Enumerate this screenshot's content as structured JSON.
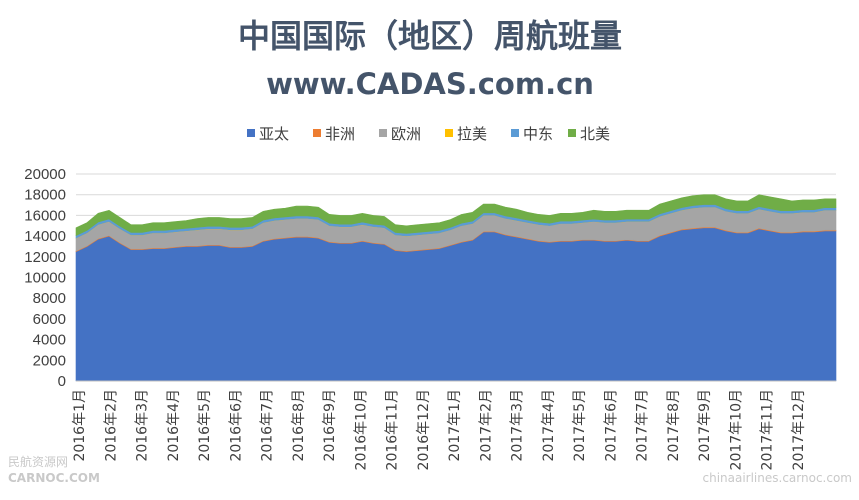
{
  "chart_data": {
    "type": "area",
    "stacked": true,
    "title": "中国国际（地区）周航班量",
    "subtitle": "www.CADAS.com.cn",
    "xlabel": "",
    "ylabel": "",
    "ylim": [
      0,
      20000
    ],
    "yticks": [
      0,
      2000,
      4000,
      6000,
      8000,
      10000,
      12000,
      14000,
      16000,
      18000,
      20000
    ],
    "grid": true,
    "legend_position": "top",
    "x_tick_labels": [
      "2016年1月",
      "2016年2月",
      "2016年3月",
      "2016年4月",
      "2016年5月",
      "2016年6月",
      "2016年7月",
      "2016年8月",
      "2016年9月",
      "2016年10月",
      "2016年11月",
      "2016年12月",
      "2017年1月",
      "2017年2月",
      "2017年3月",
      "2017年4月",
      "2017年5月",
      "2017年6月",
      "2017年7月",
      "2017年8月",
      "2017年9月",
      "2017年10月",
      "2017年11月",
      "2017年12月"
    ],
    "x": [
      "2016-01",
      "2016-01",
      "2016-02",
      "2016-02",
      "2016-02",
      "2016-03",
      "2016-03",
      "2016-03",
      "2016-04",
      "2016-04",
      "2016-04",
      "2016-05",
      "2016-05",
      "2016-05",
      "2016-06",
      "2016-06",
      "2016-06",
      "2016-07",
      "2016-07",
      "2016-07",
      "2016-08",
      "2016-08",
      "2016-08",
      "2016-09",
      "2016-09",
      "2016-09",
      "2016-10",
      "2016-10",
      "2016-10",
      "2016-11",
      "2016-11",
      "2016-11",
      "2016-12",
      "2016-12",
      "2016-12",
      "2017-01",
      "2017-01",
      "2017-01",
      "2017-02",
      "2017-02",
      "2017-02",
      "2017-03",
      "2017-03",
      "2017-03",
      "2017-04",
      "2017-04",
      "2017-04",
      "2017-05",
      "2017-05",
      "2017-05",
      "2017-06",
      "2017-06",
      "2017-06",
      "2017-07",
      "2017-07",
      "2017-07",
      "2017-08",
      "2017-08",
      "2017-08",
      "2017-09",
      "2017-09",
      "2017-09",
      "2017-10",
      "2017-10",
      "2017-10",
      "2017-11",
      "2017-11",
      "2017-11",
      "2017-12",
      "2017-12"
    ],
    "series": [
      {
        "name": "亚太",
        "color": "#4472c4",
        "values": [
          12500,
          13000,
          13700,
          14000,
          13300,
          12700,
          12700,
          12800,
          12800,
          12900,
          13000,
          13000,
          13100,
          13100,
          12900,
          12900,
          13000,
          13500,
          13700,
          13800,
          13900,
          13900,
          13800,
          13400,
          13300,
          13300,
          13500,
          13300,
          13200,
          12600,
          12500,
          12600,
          12700,
          12800,
          13100,
          13400,
          13600,
          14400,
          14400,
          14100,
          13900,
          13700,
          13500,
          13400,
          13500,
          13500,
          13600,
          13600,
          13500,
          13500,
          13600,
          13500,
          13500,
          14000,
          14300,
          14600,
          14700,
          14800,
          14800,
          14500,
          14300,
          14300,
          14700,
          14500,
          14300,
          14300,
          14400,
          14400,
          14500,
          14500
        ]
      },
      {
        "name": "非洲",
        "color": "#ed7d31",
        "values": [
          60,
          60,
          60,
          60,
          60,
          60,
          60,
          60,
          60,
          60,
          60,
          60,
          60,
          60,
          60,
          60,
          60,
          60,
          60,
          60,
          60,
          60,
          60,
          60,
          60,
          60,
          60,
          60,
          60,
          60,
          60,
          60,
          60,
          60,
          60,
          60,
          60,
          60,
          60,
          60,
          60,
          60,
          60,
          60,
          60,
          60,
          60,
          60,
          60,
          60,
          60,
          60,
          60,
          70,
          70,
          70,
          70,
          70,
          70,
          70,
          70,
          70,
          70,
          70,
          70,
          70,
          70,
          70,
          70,
          70
        ]
      },
      {
        "name": "欧洲",
        "color": "#a5a5a5",
        "values": [
          1240,
          1240,
          1340,
          1340,
          1340,
          1340,
          1340,
          1440,
          1440,
          1440,
          1440,
          1540,
          1540,
          1540,
          1640,
          1640,
          1640,
          1740,
          1740,
          1740,
          1740,
          1740,
          1740,
          1540,
          1540,
          1540,
          1540,
          1540,
          1540,
          1440,
          1440,
          1440,
          1440,
          1440,
          1440,
          1540,
          1540,
          1540,
          1540,
          1540,
          1540,
          1540,
          1540,
          1540,
          1640,
          1640,
          1640,
          1740,
          1740,
          1740,
          1740,
          1840,
          1840,
          1830,
          1830,
          1830,
          1930,
          1930,
          1930,
          1830,
          1830,
          1830,
          1830,
          1830,
          1830,
          1830,
          1830,
          1830,
          1930,
          1930
        ]
      },
      {
        "name": "拉美",
        "color": "#ffc000",
        "values": [
          10,
          10,
          10,
          10,
          10,
          10,
          10,
          10,
          10,
          10,
          10,
          10,
          10,
          10,
          10,
          10,
          10,
          10,
          10,
          10,
          10,
          10,
          10,
          10,
          10,
          10,
          10,
          10,
          10,
          10,
          10,
          10,
          10,
          10,
          10,
          10,
          10,
          10,
          10,
          10,
          10,
          10,
          10,
          10,
          10,
          10,
          10,
          10,
          10,
          10,
          10,
          10,
          10,
          10,
          10,
          10,
          10,
          10,
          10,
          10,
          10,
          10,
          10,
          10,
          10,
          10,
          10,
          10,
          10,
          10
        ]
      },
      {
        "name": "中东",
        "color": "#5b9bd5",
        "values": [
          240,
          240,
          240,
          240,
          240,
          240,
          240,
          240,
          240,
          240,
          240,
          240,
          240,
          240,
          240,
          240,
          240,
          240,
          240,
          240,
          240,
          240,
          240,
          240,
          240,
          240,
          240,
          240,
          240,
          240,
          240,
          240,
          240,
          240,
          240,
          240,
          240,
          240,
          240,
          240,
          240,
          240,
          240,
          240,
          240,
          240,
          240,
          240,
          240,
          240,
          240,
          240,
          240,
          240,
          240,
          240,
          240,
          240,
          240,
          240,
          240,
          240,
          240,
          240,
          240,
          240,
          240,
          240,
          240,
          240
        ]
      },
      {
        "name": "北美",
        "color": "#70ad47",
        "values": [
          750,
          750,
          850,
          850,
          850,
          750,
          750,
          750,
          750,
          750,
          750,
          850,
          850,
          850,
          850,
          850,
          850,
          850,
          850,
          850,
          950,
          950,
          950,
          850,
          850,
          850,
          850,
          850,
          850,
          750,
          750,
          750,
          750,
          750,
          750,
          850,
          850,
          850,
          850,
          850,
          850,
          750,
          750,
          750,
          750,
          750,
          750,
          850,
          850,
          850,
          850,
          850,
          850,
          950,
          950,
          950,
          950,
          950,
          950,
          950,
          950,
          950,
          1150,
          1150,
          1150,
          950,
          950,
          950,
          850,
          850
        ]
      }
    ]
  },
  "watermark": {
    "left_line1": "民航资源网",
    "left_line2": "CARNOC.COM",
    "right_text": "chinaairlines.carnoc.com"
  }
}
